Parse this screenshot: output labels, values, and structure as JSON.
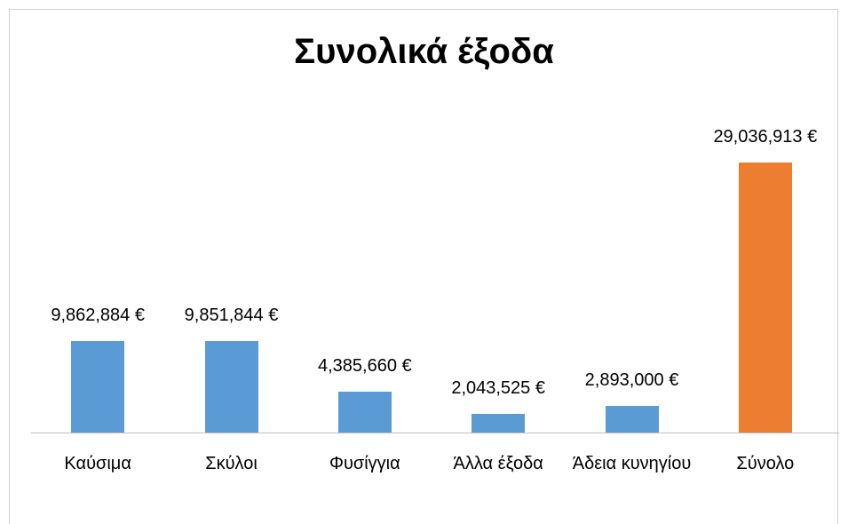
{
  "chart_data": {
    "type": "bar",
    "title": "Συνολικά έξοδα",
    "categories": [
      "Καύσιμα",
      "Σκύλοι",
      "Φυσίγγια",
      "Άλλα έξοδα",
      "Άδεια κυνηγίου",
      "Σύνολο"
    ],
    "values": [
      9862884,
      9851844,
      4385660,
      2043525,
      2893000,
      29036913
    ],
    "value_labels": [
      "9,862,884 €",
      "9,851,844 €",
      "4,385,660 €",
      "2,043,525 €",
      "2,893,000 €",
      "29,036,913 €"
    ],
    "colors": [
      "#5b9bd5",
      "#5b9bd5",
      "#5b9bd5",
      "#5b9bd5",
      "#5b9bd5",
      "#ed7d31"
    ],
    "ylim": [
      0,
      35000000
    ],
    "grid": false
  }
}
